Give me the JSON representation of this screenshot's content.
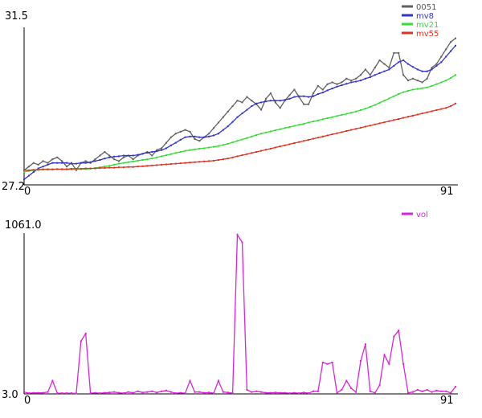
{
  "chart_data": [
    {
      "type": "line",
      "x_ticks": [
        "0",
        "91"
      ],
      "y_ticks": [
        "27.2",
        "31.5"
      ],
      "xlim": [
        0,
        91
      ],
      "ylim": [
        27.2,
        31.5
      ],
      "legend_position": "top-right",
      "series": [
        {
          "name": "0051",
          "color": "#606060",
          "values": [
            27.6,
            27.7,
            27.8,
            27.75,
            27.85,
            27.8,
            27.9,
            27.95,
            27.85,
            27.7,
            27.8,
            27.6,
            27.8,
            27.85,
            27.8,
            27.9,
            28.0,
            28.1,
            28.0,
            27.9,
            27.85,
            27.95,
            28.0,
            27.9,
            28.0,
            28.05,
            28.1,
            28.0,
            28.15,
            28.2,
            28.35,
            28.5,
            28.6,
            28.65,
            28.7,
            28.65,
            28.45,
            28.4,
            28.5,
            28.6,
            28.75,
            28.9,
            29.05,
            29.2,
            29.35,
            29.5,
            29.45,
            29.6,
            29.5,
            29.4,
            29.25,
            29.55,
            29.7,
            29.45,
            29.3,
            29.5,
            29.65,
            29.8,
            29.6,
            29.4,
            29.4,
            29.7,
            29.9,
            29.8,
            29.95,
            30.0,
            29.95,
            30.0,
            30.1,
            30.05,
            30.1,
            30.2,
            30.35,
            30.2,
            30.4,
            30.6,
            30.5,
            30.4,
            30.8,
            30.8,
            30.2,
            30.05,
            30.1,
            30.05,
            30.0,
            30.1,
            30.4,
            30.5,
            30.7,
            30.9,
            31.1,
            31.2
          ]
        },
        {
          "name": "mv8",
          "color": "#3333cc",
          "values": [
            27.35,
            27.45,
            27.55,
            27.65,
            27.7,
            27.75,
            27.8,
            27.8,
            27.8,
            27.8,
            27.78,
            27.78,
            27.8,
            27.8,
            27.82,
            27.85,
            27.88,
            27.92,
            27.95,
            27.97,
            27.98,
            28.0,
            28.0,
            28.0,
            28.02,
            28.05,
            28.08,
            28.1,
            28.12,
            28.15,
            28.2,
            28.28,
            28.35,
            28.43,
            28.5,
            28.52,
            28.52,
            28.5,
            28.5,
            28.52,
            28.55,
            28.6,
            28.7,
            28.8,
            28.92,
            29.05,
            29.15,
            29.25,
            29.35,
            29.42,
            29.45,
            29.48,
            29.5,
            29.5,
            29.5,
            29.52,
            29.55,
            29.6,
            29.62,
            29.62,
            29.6,
            29.62,
            29.68,
            29.72,
            29.78,
            29.83,
            29.88,
            29.92,
            29.96,
            30.0,
            30.02,
            30.05,
            30.1,
            30.14,
            30.2,
            30.25,
            30.3,
            30.35,
            30.45,
            30.55,
            30.6,
            30.5,
            30.42,
            30.35,
            30.3,
            30.3,
            30.35,
            30.45,
            30.55,
            30.7,
            30.85,
            31.0
          ]
        },
        {
          "name": "mv21",
          "color": "#33dd33",
          "values": [
            27.55,
            27.58,
            27.6,
            27.62,
            27.63,
            27.63,
            27.63,
            27.63,
            27.62,
            27.62,
            27.62,
            27.62,
            27.63,
            27.63,
            27.64,
            27.66,
            27.68,
            27.7,
            27.72,
            27.75,
            27.78,
            27.8,
            27.82,
            27.84,
            27.86,
            27.88,
            27.9,
            27.92,
            27.95,
            27.98,
            28.01,
            28.04,
            28.07,
            28.1,
            28.13,
            28.15,
            28.17,
            28.19,
            28.2,
            28.22,
            28.24,
            28.26,
            28.29,
            28.32,
            28.36,
            28.4,
            28.44,
            28.48,
            28.52,
            28.56,
            28.6,
            28.63,
            28.66,
            28.69,
            28.72,
            28.75,
            28.78,
            28.81,
            28.84,
            28.87,
            28.9,
            28.93,
            28.96,
            28.99,
            29.02,
            29.05,
            29.08,
            29.11,
            29.14,
            29.17,
            29.2,
            29.24,
            29.28,
            29.33,
            29.38,
            29.44,
            29.5,
            29.56,
            29.62,
            29.68,
            29.73,
            29.77,
            29.8,
            29.82,
            29.84,
            29.86,
            29.9,
            29.95,
            30.0,
            30.05,
            30.12,
            30.2
          ]
        },
        {
          "name": "mv55",
          "color": "#dd3322",
          "values": [
            27.6,
            27.6,
            27.61,
            27.61,
            27.62,
            27.62,
            27.62,
            27.63,
            27.63,
            27.63,
            27.64,
            27.64,
            27.64,
            27.65,
            27.65,
            27.65,
            27.66,
            27.66,
            27.67,
            27.67,
            27.68,
            27.68,
            27.69,
            27.69,
            27.7,
            27.71,
            27.72,
            27.73,
            27.74,
            27.75,
            27.76,
            27.77,
            27.78,
            27.79,
            27.8,
            27.81,
            27.82,
            27.83,
            27.84,
            27.85,
            27.86,
            27.88,
            27.9,
            27.92,
            27.95,
            27.98,
            28.01,
            28.04,
            28.07,
            28.1,
            28.13,
            28.16,
            28.19,
            28.22,
            28.25,
            28.28,
            28.31,
            28.34,
            28.37,
            28.4,
            28.43,
            28.46,
            28.49,
            28.52,
            28.55,
            28.58,
            28.61,
            28.64,
            28.67,
            28.7,
            28.73,
            28.76,
            28.79,
            28.82,
            28.85,
            28.88,
            28.91,
            28.94,
            28.97,
            29.0,
            29.03,
            29.06,
            29.09,
            29.12,
            29.15,
            29.18,
            29.21,
            29.24,
            29.27,
            29.3,
            29.35,
            29.42
          ]
        }
      ]
    },
    {
      "type": "line",
      "x_ticks": [
        "0",
        "91"
      ],
      "y_ticks": [
        "3.0",
        "1061.0"
      ],
      "xlim": [
        0,
        91
      ],
      "ylim": [
        3.0,
        1061.0
      ],
      "legend_position": "top-right",
      "series": [
        {
          "name": "vol",
          "color": "#dd22dd",
          "values": [
            15,
            8,
            10,
            10,
            10,
            15,
            90,
            8,
            8,
            8,
            8,
            6,
            350,
            400,
            8,
            10,
            8,
            10,
            12,
            15,
            10,
            8,
            15,
            10,
            20,
            12,
            15,
            20,
            12,
            20,
            25,
            15,
            8,
            10,
            8,
            90,
            15,
            15,
            10,
            12,
            8,
            90,
            15,
            12,
            8,
            1050,
            1000,
            30,
            15,
            20,
            15,
            10,
            10,
            12,
            10,
            10,
            8,
            10,
            8,
            12,
            8,
            20,
            20,
            210,
            200,
            210,
            10,
            30,
            90,
            40,
            15,
            220,
            330,
            20,
            10,
            60,
            260,
            200,
            380,
            420,
            200,
            10,
            15,
            30,
            20,
            30,
            15,
            25,
            20,
            20,
            10,
            50
          ]
        }
      ]
    }
  ]
}
